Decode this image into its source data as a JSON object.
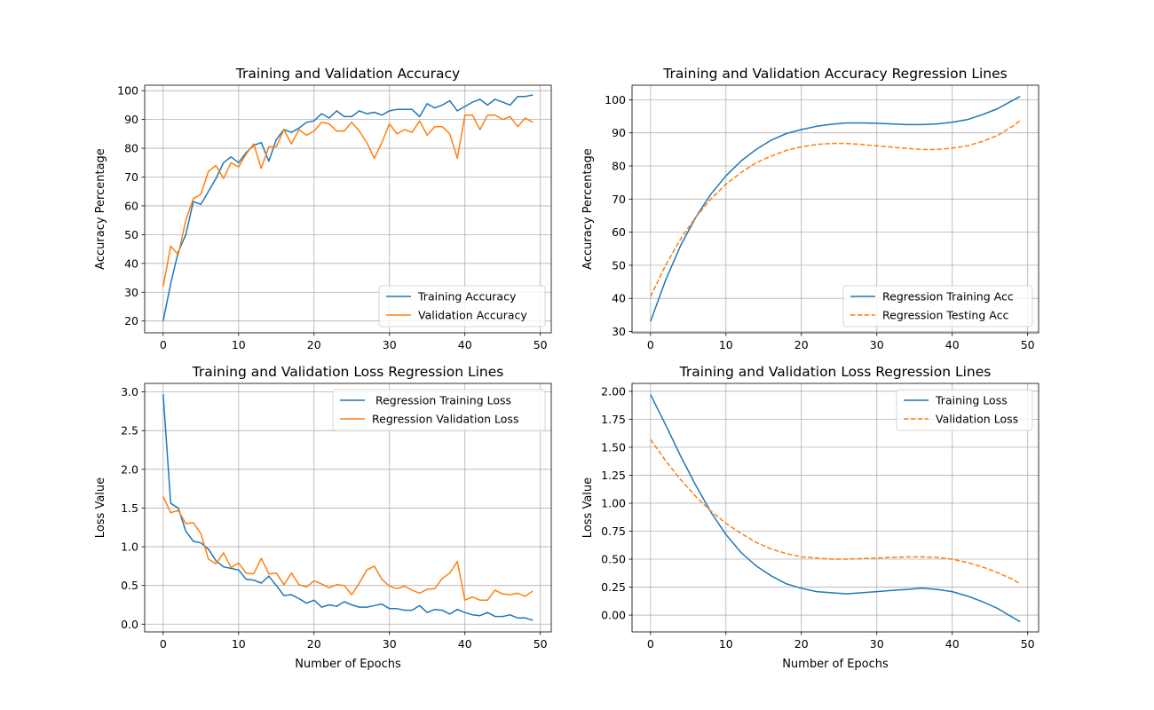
{
  "colors": {
    "blue": "#1f77b4",
    "orange": "#ff7f0e",
    "grid": "#b0b0b0",
    "axes": "#000000"
  },
  "chart_data": [
    {
      "type": "line",
      "title": "Training and Validation Accuracy",
      "xlabel": "",
      "ylabel": "Accuracy Percentage",
      "xlim": [
        -2.45,
        51.45
      ],
      "ylim": [
        15.9,
        101.9
      ],
      "xticks": [
        0,
        10,
        20,
        30,
        40,
        50
      ],
      "yticks": [
        20,
        30,
        40,
        50,
        60,
        70,
        80,
        90,
        100
      ],
      "grid": true,
      "legend_position": "lower-right",
      "series": [
        {
          "name": "Training Accuracy",
          "color": "#1f77b4",
          "dash": "solid",
          "x": [
            0,
            1,
            2,
            3,
            4,
            5,
            6,
            7,
            8,
            9,
            10,
            11,
            12,
            13,
            14,
            15,
            16,
            17,
            18,
            19,
            20,
            21,
            22,
            23,
            24,
            25,
            26,
            27,
            28,
            29,
            30,
            31,
            32,
            33,
            34,
            35,
            36,
            37,
            38,
            39,
            40,
            41,
            42,
            43,
            44,
            45,
            46,
            47,
            48,
            49
          ],
          "y": [
            20,
            33,
            44,
            50,
            61.5,
            60.5,
            65,
            69.5,
            75,
            77,
            75,
            78.5,
            81,
            82,
            75.5,
            83,
            86.5,
            85.5,
            87,
            89,
            89.5,
            92,
            90.5,
            93,
            91,
            91,
            93,
            92,
            92.5,
            91.5,
            93,
            93.5,
            93.5,
            93.5,
            91,
            95.5,
            94,
            95,
            96.5,
            93,
            94.5,
            96,
            97,
            95,
            97,
            96,
            95,
            98,
            98,
            98.5
          ]
        },
        {
          "name": "Validation Accuracy",
          "color": "#ff7f0e",
          "dash": "solid",
          "x": [
            0,
            1,
            2,
            3,
            4,
            5,
            6,
            7,
            8,
            9,
            10,
            11,
            12,
            13,
            14,
            15,
            16,
            17,
            18,
            19,
            20,
            21,
            22,
            23,
            24,
            25,
            26,
            27,
            28,
            29,
            30,
            31,
            32,
            33,
            34,
            35,
            36,
            37,
            38,
            39,
            40,
            41,
            42,
            43,
            44,
            45,
            46,
            47,
            48,
            49
          ],
          "y": [
            32,
            46,
            43,
            55,
            62.5,
            64,
            72,
            74,
            69.5,
            75,
            73.5,
            78,
            81.5,
            73,
            80.5,
            80.5,
            86.5,
            81.5,
            86.5,
            84.5,
            86,
            89,
            88.5,
            86,
            86,
            89,
            86,
            82,
            76.5,
            82,
            88.5,
            85,
            86.5,
            85.5,
            89.5,
            84.5,
            87.5,
            87.5,
            85,
            76.5,
            91.5,
            91.5,
            86.5,
            91.5,
            91.5,
            90,
            91,
            87.5,
            90.5,
            89
          ]
        }
      ]
    },
    {
      "type": "line",
      "title": "Training and Validation Accuracy Regression Lines",
      "xlabel": "",
      "ylabel": "Accuracy Percentage",
      "xlim": [
        -2.45,
        51.45
      ],
      "ylim": [
        29.6,
        104.4
      ],
      "xticks": [
        0,
        10,
        20,
        30,
        40,
        50
      ],
      "yticks": [
        30,
        40,
        50,
        60,
        70,
        80,
        90,
        100
      ],
      "grid": true,
      "legend_position": "lower-right",
      "series": [
        {
          "name": "Regression Training Acc",
          "color": "#1f77b4",
          "dash": "solid",
          "x": [
            0,
            2,
            4,
            6,
            8,
            10,
            12,
            14,
            16,
            18,
            20,
            22,
            24,
            26,
            28,
            30,
            32,
            34,
            36,
            38,
            40,
            42,
            44,
            46,
            48,
            49
          ],
          "y": [
            33,
            45.5,
            56,
            64.5,
            71.5,
            77,
            81.5,
            85,
            87.8,
            89.8,
            91,
            92,
            92.6,
            93,
            93,
            92.9,
            92.7,
            92.5,
            92.5,
            92.7,
            93.2,
            94,
            95.5,
            97.3,
            99.8,
            101
          ]
        },
        {
          "name": "Regression Testing Acc",
          "color": "#ff7f0e",
          "dash": "dashed",
          "x": [
            0,
            2,
            4,
            6,
            8,
            10,
            12,
            14,
            16,
            18,
            20,
            22,
            24,
            26,
            28,
            30,
            32,
            34,
            36,
            38,
            40,
            42,
            44,
            46,
            48,
            49
          ],
          "y": [
            40.5,
            50,
            58,
            64.5,
            70,
            74.5,
            78,
            81,
            83,
            84.7,
            85.8,
            86.5,
            86.8,
            86.8,
            86.5,
            86.1,
            85.7,
            85.3,
            85,
            85,
            85.4,
            86.1,
            87.4,
            89.2,
            92,
            93.7
          ]
        }
      ]
    },
    {
      "type": "line",
      "title": "Training and Validation Loss Regression Lines",
      "xlabel": "Number of Epochs",
      "ylabel": "Loss Value",
      "xlim": [
        -2.45,
        51.45
      ],
      "ylim": [
        -0.1,
        3.11
      ],
      "xticks": [
        0,
        10,
        20,
        30,
        40,
        50
      ],
      "yticks": [
        0.0,
        0.5,
        1.0,
        1.5,
        2.0,
        2.5,
        3.0
      ],
      "ytick_labels": [
        "0.0",
        "0.5",
        "1.0",
        "1.5",
        "2.0",
        "2.5",
        "3.0"
      ],
      "grid": true,
      "legend_position": "upper-right",
      "series": [
        {
          "name": " Regression Training Loss",
          "color": "#1f77b4",
          "dash": "solid",
          "x": [
            0,
            1,
            2,
            3,
            4,
            5,
            6,
            7,
            8,
            9,
            10,
            11,
            12,
            13,
            14,
            15,
            16,
            17,
            18,
            19,
            20,
            21,
            22,
            23,
            24,
            25,
            26,
            27,
            28,
            29,
            30,
            31,
            32,
            33,
            34,
            35,
            36,
            37,
            38,
            39,
            40,
            41,
            42,
            43,
            44,
            45,
            46,
            47,
            48,
            49
          ],
          "y": [
            2.97,
            1.56,
            1.5,
            1.2,
            1.07,
            1.05,
            0.97,
            0.82,
            0.74,
            0.72,
            0.7,
            0.58,
            0.57,
            0.53,
            0.62,
            0.5,
            0.37,
            0.38,
            0.33,
            0.27,
            0.31,
            0.22,
            0.25,
            0.23,
            0.29,
            0.25,
            0.22,
            0.22,
            0.24,
            0.26,
            0.2,
            0.2,
            0.18,
            0.18,
            0.24,
            0.15,
            0.19,
            0.18,
            0.13,
            0.19,
            0.15,
            0.12,
            0.11,
            0.15,
            0.1,
            0.1,
            0.12,
            0.08,
            0.08,
            0.05
          ]
        },
        {
          "name": "Regression Validation Loss",
          "color": "#ff7f0e",
          "dash": "solid",
          "x": [
            0,
            1,
            2,
            3,
            4,
            5,
            6,
            7,
            8,
            9,
            10,
            11,
            12,
            13,
            14,
            15,
            16,
            17,
            18,
            19,
            20,
            21,
            22,
            23,
            24,
            25,
            26,
            27,
            28,
            29,
            30,
            31,
            32,
            33,
            34,
            35,
            36,
            37,
            38,
            39,
            40,
            41,
            42,
            43,
            44,
            45,
            46,
            47,
            48,
            49
          ],
          "y": [
            1.65,
            1.44,
            1.47,
            1.3,
            1.31,
            1.17,
            0.84,
            0.78,
            0.92,
            0.73,
            0.79,
            0.66,
            0.65,
            0.85,
            0.65,
            0.66,
            0.51,
            0.66,
            0.51,
            0.48,
            0.56,
            0.52,
            0.47,
            0.51,
            0.5,
            0.38,
            0.53,
            0.7,
            0.75,
            0.58,
            0.49,
            0.46,
            0.49,
            0.44,
            0.4,
            0.45,
            0.46,
            0.59,
            0.66,
            0.81,
            0.31,
            0.35,
            0.31,
            0.31,
            0.44,
            0.39,
            0.38,
            0.4,
            0.36,
            0.43
          ]
        }
      ]
    },
    {
      "type": "line",
      "title": "Training and Validation Loss Regression Lines",
      "xlabel": "Number of Epochs",
      "ylabel": "Loss Value",
      "xlim": [
        -2.45,
        51.45
      ],
      "ylim": [
        -0.15,
        2.07
      ],
      "xticks": [
        0,
        10,
        20,
        30,
        40,
        50
      ],
      "yticks": [
        0.0,
        0.25,
        0.5,
        0.75,
        1.0,
        1.25,
        1.5,
        1.75,
        2.0
      ],
      "ytick_labels": [
        "0.00",
        "0.25",
        "0.50",
        "0.75",
        "1.00",
        "1.25",
        "1.50",
        "1.75",
        "2.00"
      ],
      "grid": true,
      "legend_position": "upper-right",
      "series": [
        {
          "name": "Training Loss",
          "color": "#1f77b4",
          "dash": "solid",
          "x": [
            0,
            2,
            4,
            6,
            8,
            10,
            12,
            14,
            16,
            18,
            20,
            22,
            24,
            26,
            28,
            30,
            32,
            34,
            36,
            38,
            40,
            42,
            44,
            46,
            48,
            49
          ],
          "y": [
            1.97,
            1.7,
            1.42,
            1.16,
            0.92,
            0.72,
            0.56,
            0.44,
            0.35,
            0.28,
            0.24,
            0.21,
            0.2,
            0.19,
            0.2,
            0.21,
            0.22,
            0.23,
            0.24,
            0.23,
            0.21,
            0.17,
            0.12,
            0.06,
            -0.02,
            -0.06
          ]
        },
        {
          "name": "Validation Loss",
          "color": "#ff7f0e",
          "dash": "dashed",
          "x": [
            0,
            2,
            4,
            6,
            8,
            10,
            12,
            14,
            16,
            18,
            20,
            22,
            24,
            26,
            28,
            30,
            32,
            34,
            36,
            38,
            40,
            42,
            44,
            46,
            48,
            49
          ],
          "y": [
            1.57,
            1.38,
            1.21,
            1.06,
            0.93,
            0.82,
            0.73,
            0.65,
            0.59,
            0.55,
            0.52,
            0.51,
            0.5,
            0.5,
            0.505,
            0.51,
            0.515,
            0.52,
            0.52,
            0.515,
            0.5,
            0.47,
            0.43,
            0.38,
            0.32,
            0.28
          ]
        }
      ]
    }
  ]
}
